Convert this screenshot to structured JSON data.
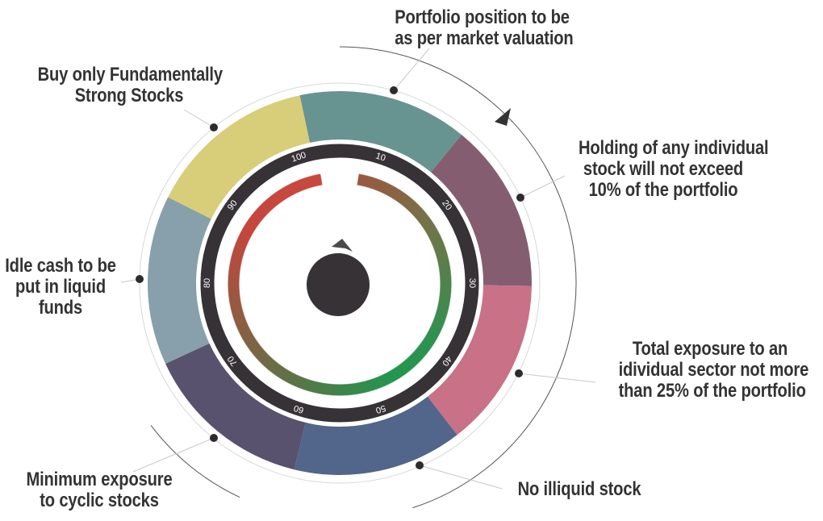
{
  "principles": [
    {
      "lines": [
        "Portfolio position to be",
        "as per market valuation"
      ],
      "color": "#679490"
    },
    {
      "lines": [
        "Holding of any individual",
        "stock will not exceed",
        "10% of the portfolio"
      ],
      "color": "#845e70"
    },
    {
      "lines": [
        "Total exposure to an",
        "idividual sector not more",
        "than 25% of the portfolio"
      ],
      "color": "#c87187"
    },
    {
      "lines": [
        "No illiquid stock"
      ],
      "color": "#52658a"
    },
    {
      "lines": [
        "Minimum exposure",
        "to cyclic stocks"
      ],
      "color": "#58526f"
    },
    {
      "lines": [
        "Idle cash to be",
        "put in liquid",
        "funds"
      ],
      "color": "#87a0ab"
    },
    {
      "lines": [
        "Buy only Fundamentally",
        "Strong Stocks"
      ],
      "color": "#d8cd78"
    }
  ],
  "dial": {
    "tick_labels": [
      "10",
      "20",
      "30",
      "40",
      "50",
      "60",
      "70",
      "80",
      "90",
      "100"
    ],
    "ring_color": "#363236",
    "knob_color": "#363236",
    "gradient_colors": [
      "#c84a3e",
      "#9b5840",
      "#22964f"
    ]
  },
  "text_color": "#333333"
}
